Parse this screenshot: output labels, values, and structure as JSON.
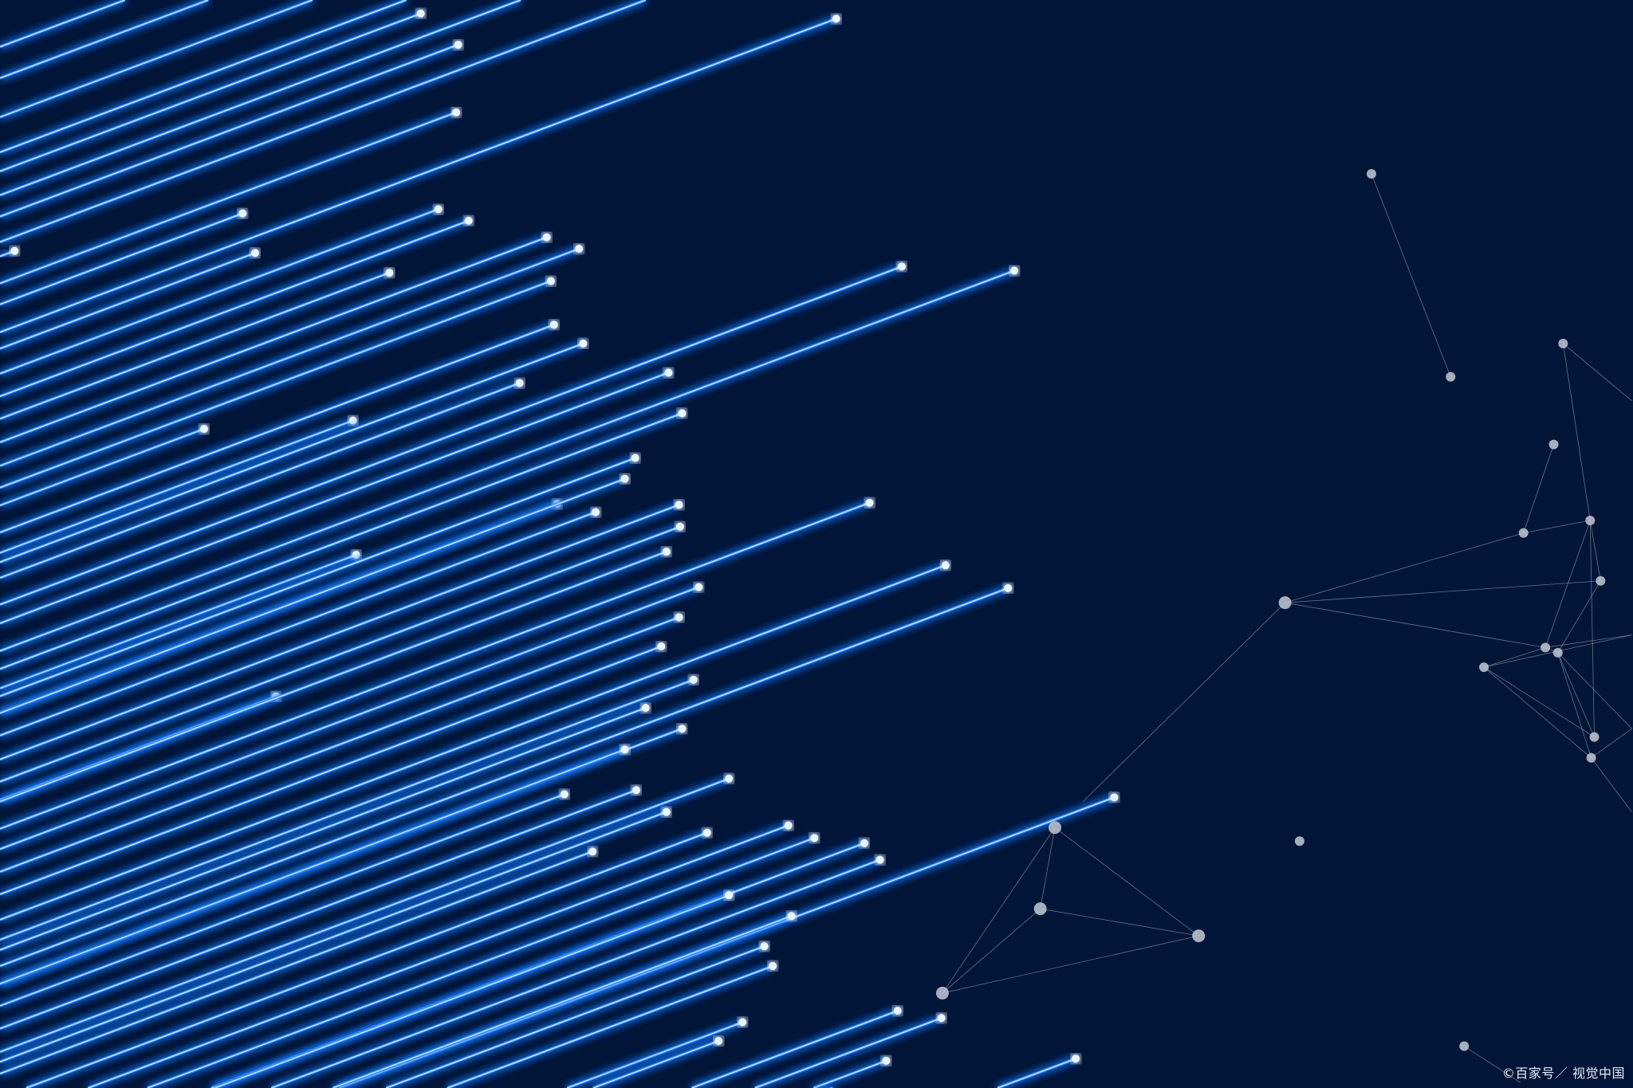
{
  "watermark": "©百家号／ 视觉中国",
  "colors": {
    "background": "#011538",
    "line": "#1f7bff",
    "line_core": "#cfe6ff",
    "node": "#b8bfcc"
  }
}
